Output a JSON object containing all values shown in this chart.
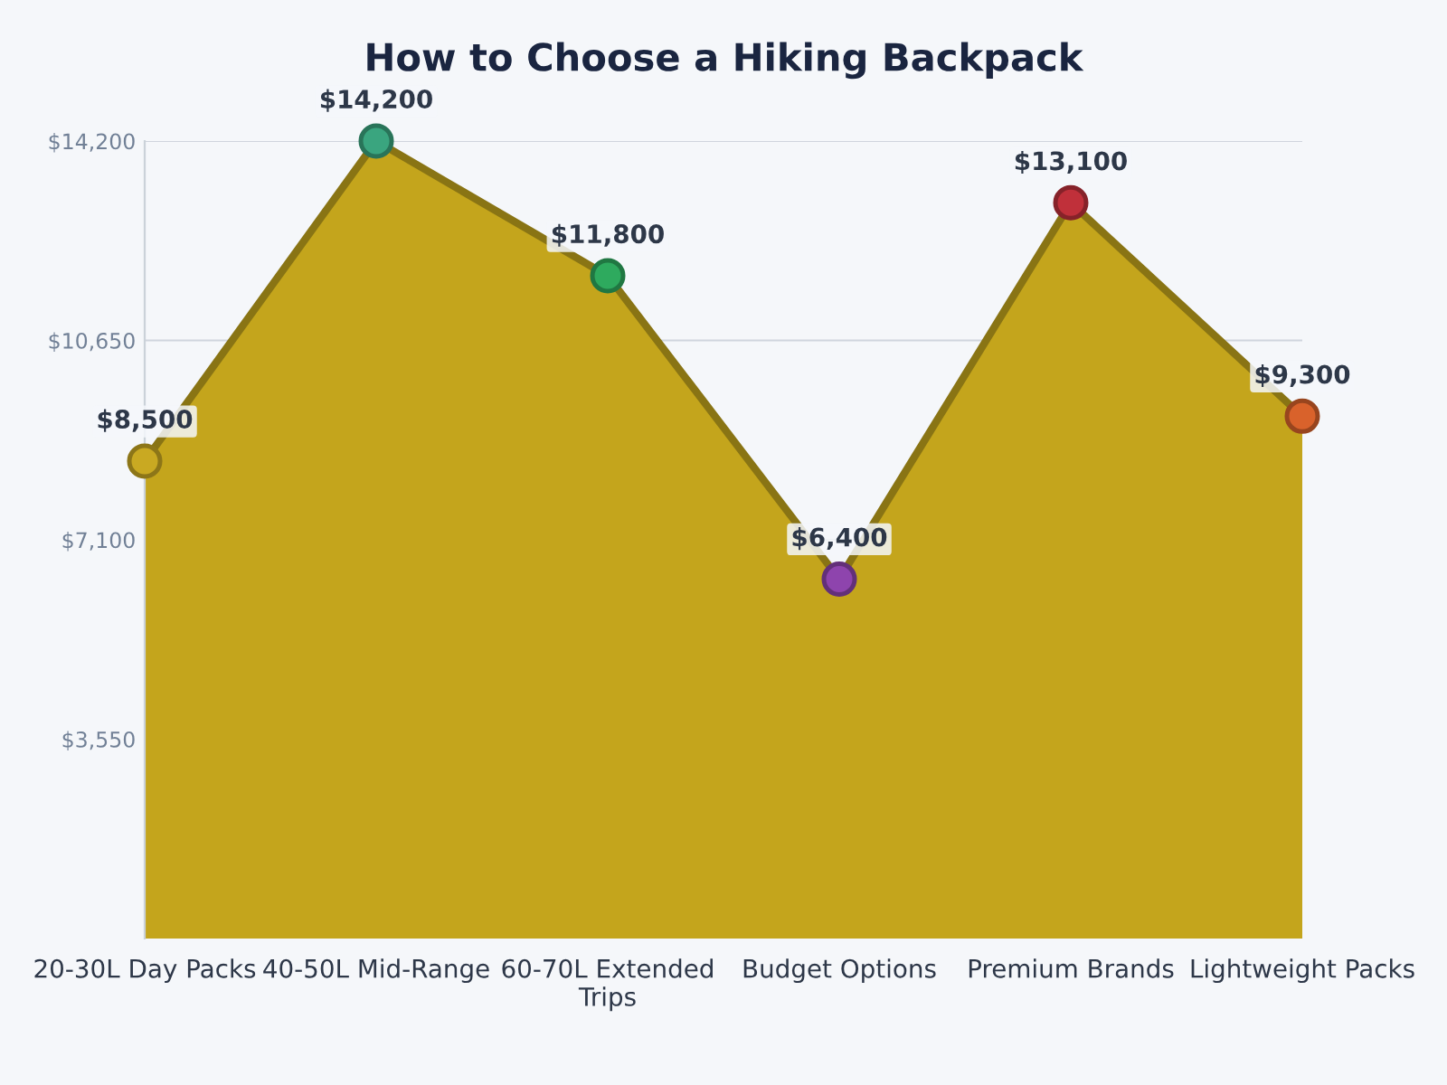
{
  "chart_data": {
    "type": "area",
    "title": "How to Choose a Hiking Backpack",
    "categories": [
      "20-30L Day Packs",
      "40-50L Mid-Range",
      "60-70L Extended\nTrips",
      "Budget Options",
      "Premium Brands",
      "Lightweight Packs"
    ],
    "series": [
      {
        "color": "#c4a51c",
        "values": [
          8500,
          14200,
          11800,
          6400,
          13100,
          9300
        ],
        "colors": [
          "#c9a922",
          "#3aa57f",
          "#2eaa5e",
          "#8e44ad",
          "#c0303a",
          "#d9622b"
        ],
        "value_labels": [
          "$8,500",
          "$14,200",
          "$11,800",
          "$6,400",
          "$13,100",
          "$9,300"
        ]
      }
    ],
    "ylim": [
      0,
      14200
    ],
    "yticks": [
      {
        "value": 3550,
        "label": "$3,550"
      },
      {
        "value": 7100,
        "label": "$7,100"
      },
      {
        "value": 10650,
        "label": "$10,650"
      },
      {
        "value": 14200,
        "label": "$14,200"
      }
    ],
    "grid": "y",
    "marker": "circle",
    "line_style": "solid"
  }
}
